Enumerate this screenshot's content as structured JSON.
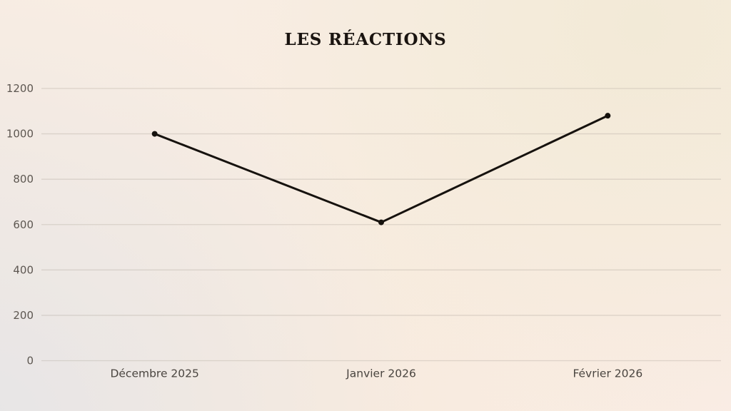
{
  "title": "LES RÉACTIONS",
  "chart_data": {
    "type": "line",
    "title": "LES RÉACTIONS",
    "categories": [
      "Décembre 2025",
      "Janvier 2026",
      "Février 2026"
    ],
    "series": [
      {
        "name": "Réactions",
        "values": [
          1000,
          610,
          1080
        ]
      }
    ],
    "xlabel": "",
    "ylabel": "",
    "ylim": [
      0,
      1200
    ],
    "yticks": [
      0,
      200,
      400,
      600,
      800,
      1000,
      1200
    ],
    "grid": true,
    "legend": false,
    "style": {
      "line_color": "#16120e",
      "line_width": 3,
      "marker_radius": 4,
      "gridline_color": "#b3aca0",
      "gridline_opacity": 0.38,
      "ytick_color": "#5d5751",
      "xtick_color": "#49443f",
      "ytick_font_size": 15,
      "xtick_font_size": 15.5
    }
  }
}
